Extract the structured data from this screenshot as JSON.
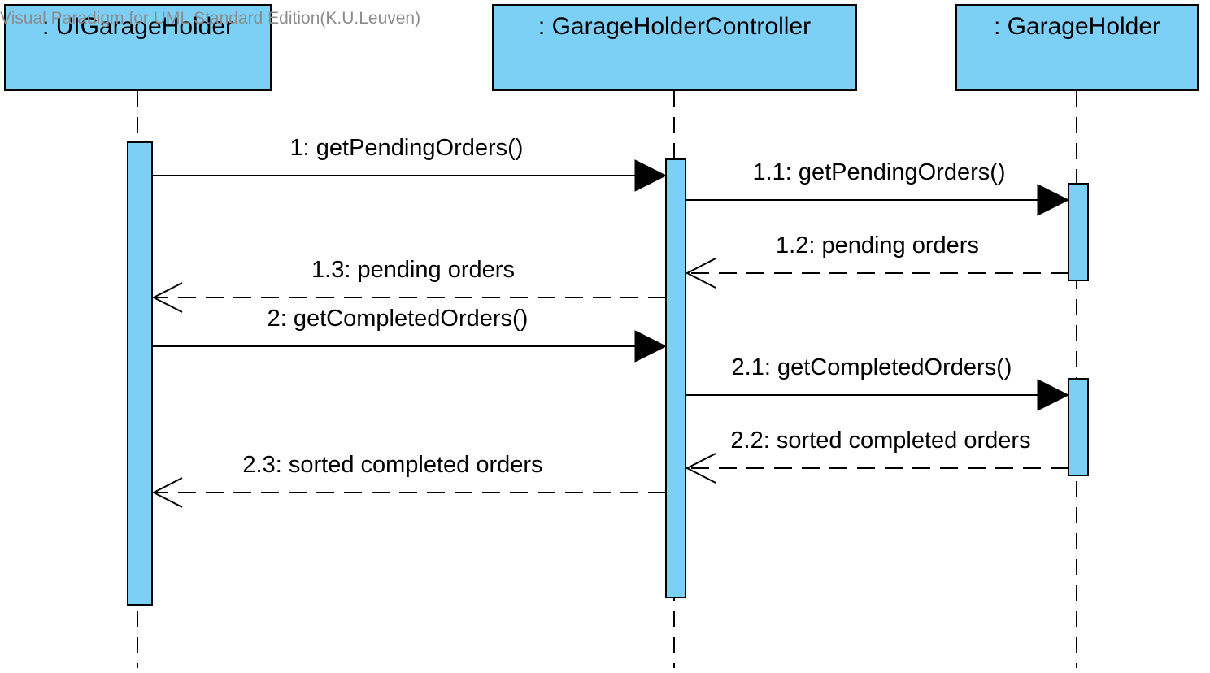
{
  "watermark": "Visual Paradigm for UML Standard Edition(K.U.Leuven)",
  "colors": {
    "lifeline_fill": "#7ccff5",
    "line": "#000000",
    "watermark": "#8c8c8c"
  },
  "lifelines": [
    {
      "id": "ui",
      "title": ": UIGarageHolder"
    },
    {
      "id": "ctrl",
      "title": ": GarageHolderController"
    },
    {
      "id": "gh",
      "title": ": GarageHolder"
    }
  ],
  "messages": [
    {
      "id": "m1",
      "label": "1: getPendingOrders()",
      "from": "ui",
      "to": "ctrl",
      "kind": "call"
    },
    {
      "id": "m1_1",
      "label": "1.1: getPendingOrders()",
      "from": "ctrl",
      "to": "gh",
      "kind": "call"
    },
    {
      "id": "m1_2",
      "label": "1.2: pending orders",
      "from": "gh",
      "to": "ctrl",
      "kind": "return"
    },
    {
      "id": "m1_3",
      "label": "1.3: pending orders",
      "from": "ctrl",
      "to": "ui",
      "kind": "return"
    },
    {
      "id": "m2",
      "label": "2: getCompletedOrders()",
      "from": "ui",
      "to": "ctrl",
      "kind": "call"
    },
    {
      "id": "m2_1",
      "label": "2.1: getCompletedOrders()",
      "from": "ctrl",
      "to": "gh",
      "kind": "call"
    },
    {
      "id": "m2_2",
      "label": "2.2: sorted completed orders",
      "from": "gh",
      "to": "ctrl",
      "kind": "return"
    },
    {
      "id": "m2_3",
      "label": "2.3: sorted completed orders",
      "from": "ctrl",
      "to": "ui",
      "kind": "return"
    }
  ]
}
